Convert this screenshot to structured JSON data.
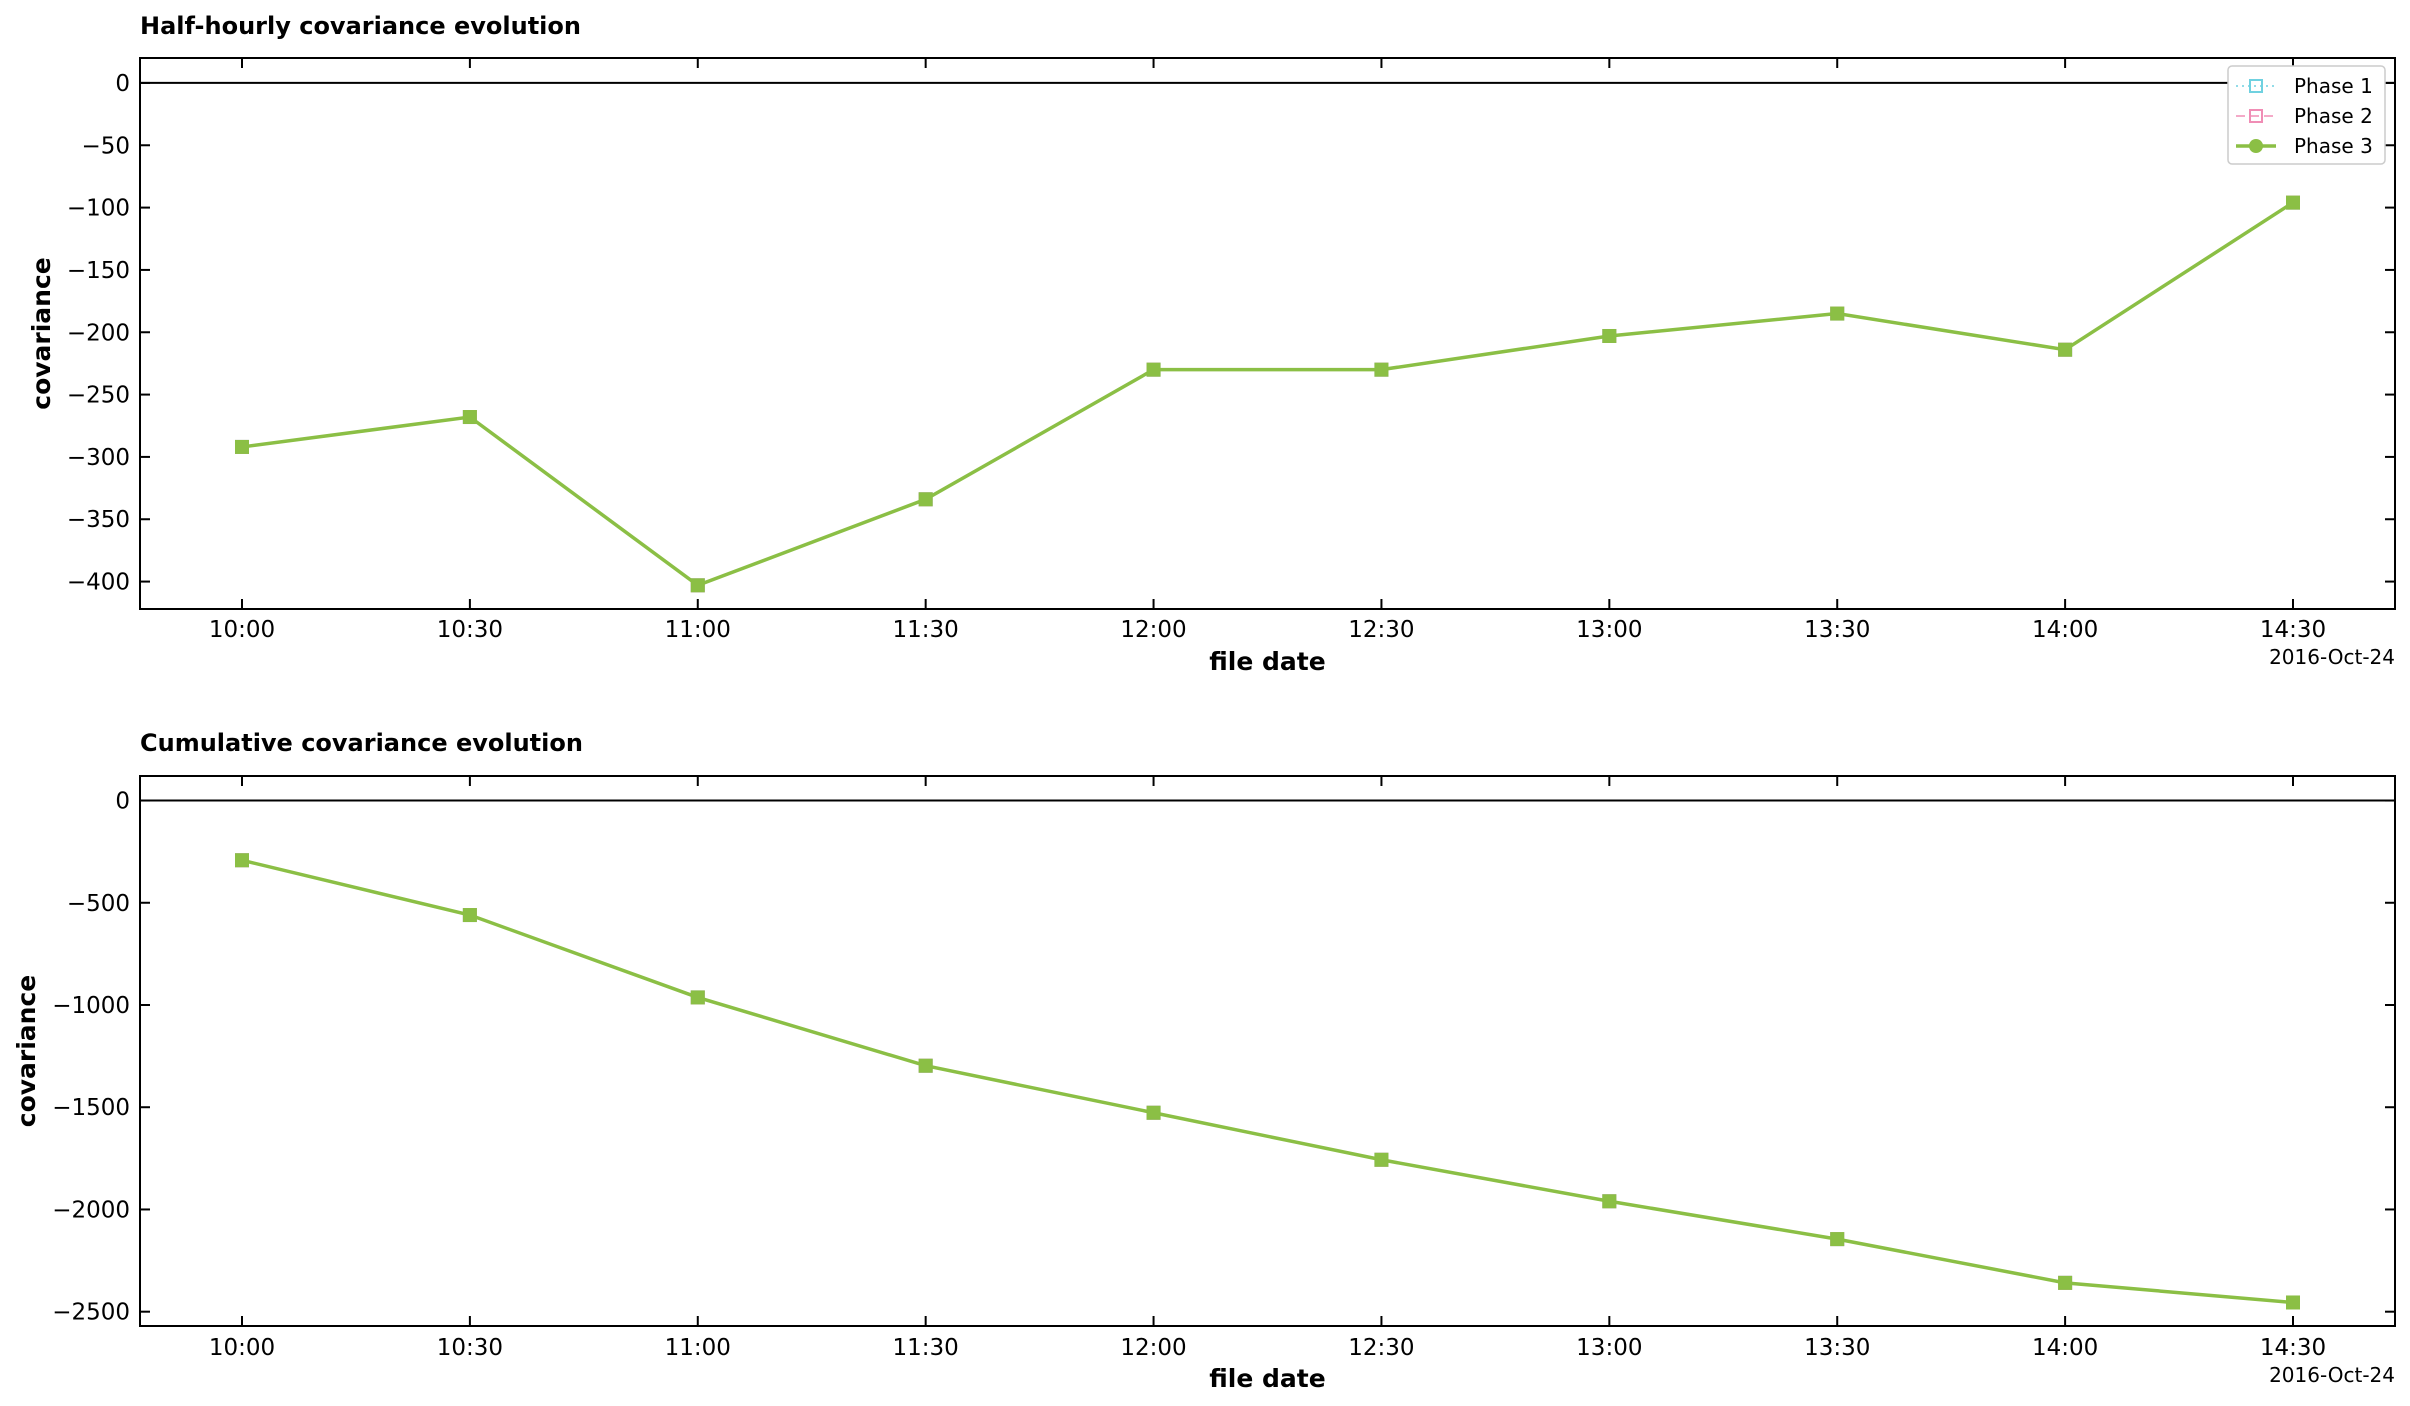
{
  "colors": {
    "phase1": "#6fd1e0",
    "phase2": "#f08db5",
    "phase3": "#8bbf45"
  },
  "chart_data": [
    {
      "type": "line",
      "title": "Half-hourly covariance evolution",
      "xlabel": "file date",
      "ylabel": "covariance",
      "date_label": "2016-Oct-24",
      "categories": [
        "10:00",
        "10:30",
        "11:00",
        "11:30",
        "12:00",
        "12:30",
        "13:00",
        "13:30",
        "14:00",
        "14:30"
      ],
      "ylim": [
        -422,
        20
      ],
      "yticks": [
        0,
        -50,
        -100,
        -150,
        -200,
        -250,
        -300,
        -350,
        -400
      ],
      "ytick_labels": [
        "0",
        "−50",
        "−100",
        "−150",
        "−200",
        "−250",
        "−300",
        "−350",
        "−400"
      ],
      "zero_line": true,
      "grid": false,
      "legend": "top-right",
      "series": [
        {
          "name": "Phase 1",
          "color_key": "phase1",
          "style": "dotted",
          "marker": "open-square",
          "values": [
            -292,
            -268,
            -403,
            -334,
            -230,
            -230,
            -203,
            -185,
            -214,
            -96
          ]
        },
        {
          "name": "Phase 2",
          "color_key": "phase2",
          "style": "dashed",
          "marker": "open-square",
          "values": [
            -292,
            -268,
            -403,
            -334,
            -230,
            -230,
            -203,
            -185,
            -214,
            -96
          ]
        },
        {
          "name": "Phase 3",
          "color_key": "phase3",
          "style": "solid",
          "marker": "filled-circle",
          "values": [
            -292,
            -268,
            -403,
            -334,
            -230,
            -230,
            -203,
            -185,
            -214,
            -96
          ]
        }
      ]
    },
    {
      "type": "line",
      "title": "Cumulative covariance evolution",
      "xlabel": "file date",
      "ylabel": "covariance",
      "date_label": "2016-Oct-24",
      "categories": [
        "10:00",
        "10:30",
        "11:00",
        "11:30",
        "12:00",
        "12:30",
        "13:00",
        "13:30",
        "14:00",
        "14:30"
      ],
      "ylim": [
        -2570,
        120
      ],
      "yticks": [
        0,
        -500,
        -1000,
        -1500,
        -2000,
        -2500
      ],
      "ytick_labels": [
        "0",
        "−500",
        "−1000",
        "−1500",
        "−2000",
        "−2500"
      ],
      "zero_line": true,
      "grid": false,
      "series": [
        {
          "name": "Phase 1",
          "color_key": "phase1",
          "style": "dotted",
          "marker": "open-square",
          "values": [
            -292,
            -560,
            -963,
            -1297,
            -1527,
            -1757,
            -1960,
            -2145,
            -2359,
            -2455
          ]
        },
        {
          "name": "Phase 2",
          "color_key": "phase2",
          "style": "dashed",
          "marker": "open-square",
          "values": [
            -292,
            -560,
            -963,
            -1297,
            -1527,
            -1757,
            -1960,
            -2145,
            -2359,
            -2455
          ]
        },
        {
          "name": "Phase 3",
          "color_key": "phase3",
          "style": "solid",
          "marker": "filled-circle",
          "values": [
            -292,
            -560,
            -963,
            -1297,
            -1527,
            -1757,
            -1960,
            -2145,
            -2359,
            -2455
          ]
        }
      ]
    }
  ]
}
